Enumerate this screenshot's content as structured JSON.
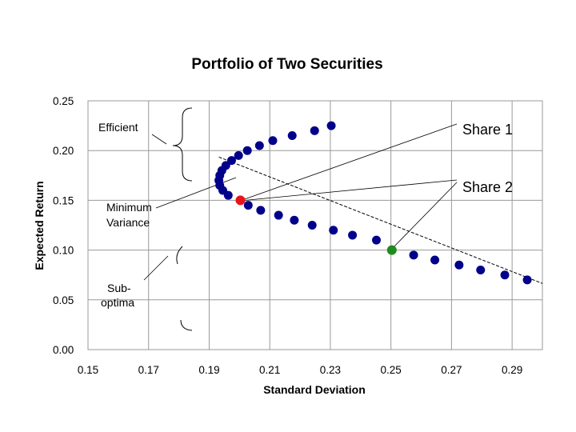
{
  "chart_data": {
    "type": "scatter",
    "title": "Portfolio of Two Securities",
    "xlabel": "Standard Deviation",
    "ylabel": "Expected Return",
    "xlim": [
      0.15,
      0.3
    ],
    "ylim": [
      0.0,
      0.25
    ],
    "xticks": [
      "0.15",
      "0.17",
      "0.19",
      "0.21",
      "0.23",
      "0.25",
      "0.27",
      "0.29"
    ],
    "yticks": [
      "0.00",
      "0.05",
      "0.10",
      "0.15",
      "0.20",
      "0.25"
    ],
    "grid": true,
    "colors": {
      "series": "#00008B",
      "minimum_variance": "#E8141C",
      "share_2": "#1E8B1E"
    },
    "series": [
      {
        "points": [
          [
            0.2303,
            0.225
          ],
          [
            0.2248,
            0.22
          ],
          [
            0.2174,
            0.215
          ],
          [
            0.211,
            0.21
          ],
          [
            0.2066,
            0.205
          ],
          [
            0.2026,
            0.2
          ],
          [
            0.1997,
            0.195
          ],
          [
            0.1974,
            0.19
          ],
          [
            0.1955,
            0.185
          ],
          [
            0.1942,
            0.18
          ],
          [
            0.1935,
            0.175
          ],
          [
            0.1932,
            0.17
          ],
          [
            0.1935,
            0.165
          ],
          [
            0.1945,
            0.16
          ],
          [
            0.1963,
            0.155
          ],
          [
            0.2003,
            0.15
          ],
          [
            0.2029,
            0.145
          ],
          [
            0.207,
            0.14
          ],
          [
            0.2129,
            0.135
          ],
          [
            0.2181,
            0.13
          ],
          [
            0.224,
            0.125
          ],
          [
            0.231,
            0.12
          ],
          [
            0.2373,
            0.115
          ],
          [
            0.2452,
            0.11
          ],
          [
            0.2503,
            0.1
          ],
          [
            0.2575,
            0.095
          ],
          [
            0.2645,
            0.09
          ],
          [
            0.2725,
            0.085
          ],
          [
            0.2796,
            0.08
          ],
          [
            0.2876,
            0.075
          ],
          [
            0.295,
            0.07
          ]
        ]
      }
    ],
    "highlighted": [
      {
        "x": 0.2003,
        "y": 0.15,
        "color": "#E8141C"
      },
      {
        "x": 0.2503,
        "y": 0.1,
        "color": "#1E8B1E"
      }
    ],
    "trendline": [
      [
        0.1932,
        0.1935
      ],
      [
        0.3,
        0.0665
      ]
    ],
    "annotations": {
      "efficient": "Efficient",
      "minimum_variance_line1": "Minimum",
      "minimum_variance_line2": "Variance",
      "sub_optimal_line1": "Sub-",
      "sub_optimal_line2": "optima",
      "share_1": "Share 1",
      "share_2": "Share 2"
    }
  }
}
